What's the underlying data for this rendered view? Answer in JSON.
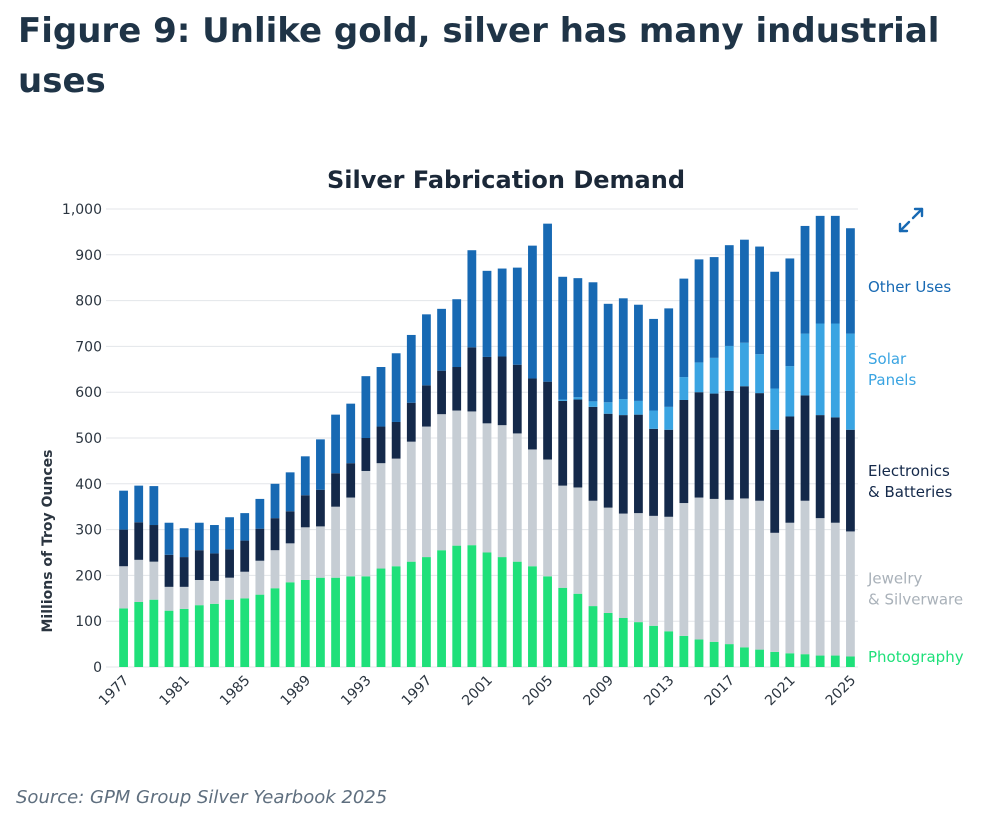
{
  "figure": {
    "title": "Figure 9: Unlike gold, silver has many industrial uses",
    "source": "Source: GPM Group Silver Yearbook 2025"
  },
  "colors": {
    "photography": "#1fe07a",
    "jewelry": "#c6cdd4",
    "electronics": "#14294a",
    "solar": "#3aa4e2",
    "other": "#1769b3",
    "grid": "#e3e6ea",
    "expand_icon": "#1769b3"
  },
  "icons": {
    "expand": "expand-arrows-icon"
  },
  "chart_data": {
    "type": "bar",
    "stacked": true,
    "title": "Silver Fabrication Demand",
    "ylabel": "Millions of Troy Ounces",
    "xlabel": "",
    "ylim": [
      0,
      1000
    ],
    "yticks": [
      "0",
      "100",
      "200",
      "300",
      "400",
      "500",
      "600",
      "700",
      "800",
      "900",
      "1,000"
    ],
    "ytick_values": [
      0,
      100,
      200,
      300,
      400,
      500,
      600,
      700,
      800,
      900,
      1000
    ],
    "x": [
      1977,
      1978,
      1979,
      1980,
      1981,
      1982,
      1983,
      1984,
      1985,
      1986,
      1987,
      1988,
      1989,
      1990,
      1991,
      1992,
      1993,
      1994,
      1995,
      1996,
      1997,
      1998,
      1999,
      2000,
      2001,
      2002,
      2003,
      2004,
      2005,
      2006,
      2007,
      2008,
      2009,
      2010,
      2011,
      2012,
      2013,
      2014,
      2015,
      2016,
      2017,
      2018,
      2019,
      2020,
      2021,
      2022,
      2023,
      2024,
      2025
    ],
    "xticks": [
      "1977",
      "1981",
      "1985",
      "1989",
      "1993",
      "1997",
      "2001",
      "2005",
      "2009",
      "2013",
      "2017",
      "2021",
      "2025"
    ],
    "grid": true,
    "legend_placement": "right",
    "series": [
      {
        "name": "Photography",
        "key": "photography",
        "values": [
          128,
          142,
          147,
          123,
          127,
          135,
          138,
          147,
          150,
          158,
          172,
          185,
          190,
          195,
          195,
          198,
          198,
          215,
          220,
          230,
          240,
          255,
          265,
          266,
          250,
          240,
          230,
          220,
          198,
          173,
          160,
          133,
          118,
          107,
          98,
          90,
          78,
          68,
          60,
          55,
          50,
          43,
          38,
          33,
          30,
          28,
          25,
          25,
          23
        ]
      },
      {
        "name": "Jewelry & Silverware",
        "key": "jewelry",
        "values": [
          92,
          92,
          83,
          52,
          48,
          55,
          50,
          48,
          58,
          74,
          83,
          85,
          115,
          112,
          155,
          172,
          230,
          230,
          235,
          262,
          285,
          297,
          295,
          292,
          282,
          288,
          280,
          255,
          255,
          223,
          232,
          230,
          230,
          228,
          238,
          240,
          250,
          290,
          310,
          312,
          315,
          325,
          325,
          260,
          285,
          335,
          300,
          290,
          273
        ]
      },
      {
        "name": "Electronics & Batteries",
        "key": "electronics",
        "values": [
          80,
          82,
          80,
          70,
          65,
          65,
          60,
          62,
          68,
          70,
          70,
          70,
          70,
          80,
          73,
          75,
          72,
          80,
          80,
          85,
          90,
          95,
          95,
          140,
          145,
          150,
          150,
          155,
          170,
          185,
          192,
          205,
          205,
          215,
          215,
          190,
          190,
          225,
          230,
          230,
          238,
          245,
          235,
          225,
          232,
          230,
          225,
          230,
          222
        ]
      },
      {
        "name": "Solar Panels",
        "key": "solar",
        "values": [
          0,
          0,
          0,
          0,
          0,
          0,
          0,
          0,
          0,
          0,
          0,
          0,
          0,
          0,
          0,
          0,
          0,
          0,
          0,
          0,
          0,
          0,
          0,
          0,
          0,
          0,
          0,
          0,
          0,
          3,
          5,
          12,
          25,
          35,
          30,
          40,
          50,
          50,
          65,
          78,
          98,
          95,
          85,
          90,
          110,
          135,
          200,
          205,
          210
        ]
      },
      {
        "name": "Other Uses",
        "key": "other",
        "values": [
          85,
          80,
          85,
          70,
          63,
          60,
          62,
          70,
          60,
          65,
          75,
          85,
          85,
          110,
          128,
          130,
          135,
          130,
          150,
          148,
          155,
          135,
          148,
          212,
          188,
          192,
          212,
          290,
          345,
          268,
          260,
          260,
          215,
          220,
          210,
          200,
          215,
          215,
          225,
          220,
          220,
          225,
          235,
          255,
          235,
          235,
          235,
          235,
          230
        ]
      }
    ],
    "legend": [
      {
        "key": "other",
        "lines": [
          "Other Uses"
        ],
        "color": "#1769b3",
        "value_level": 830
      },
      {
        "key": "solar",
        "lines": [
          "Solar",
          "Panels"
        ],
        "color": "#3aa4e2",
        "value_level": 650
      },
      {
        "key": "electronics",
        "lines": [
          "Electronics",
          "& Batteries"
        ],
        "color": "#14294a",
        "value_level": 405
      },
      {
        "key": "jewelry",
        "lines": [
          "Jewelry",
          "& Silverware"
        ],
        "color": "#a9b1b9",
        "value_level": 170
      },
      {
        "key": "photography",
        "lines": [
          "Photography"
        ],
        "color": "#1fe07a",
        "value_level": 22
      }
    ]
  }
}
